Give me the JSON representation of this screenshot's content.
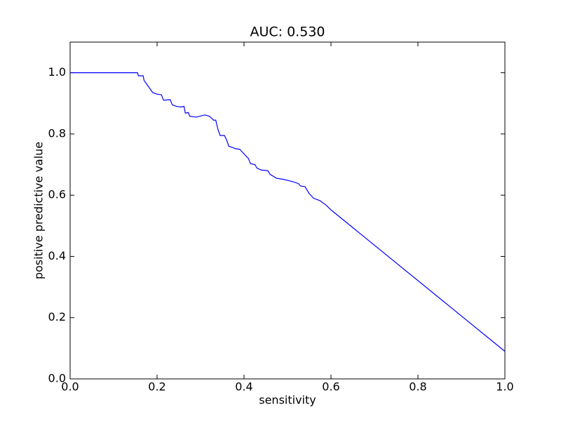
{
  "chart_data": {
    "type": "line",
    "title": "AUC: 0.530",
    "x_label": "sensitivity",
    "y_label": "positive predictive value",
    "xlim": [
      0,
      1
    ],
    "ylim": [
      0,
      1.1
    ],
    "xticks": [
      {
        "value": 0,
        "label": "0.0"
      },
      0.2,
      0.4,
      0.6,
      0.8,
      {
        "value": 1,
        "label": "1.0"
      }
    ],
    "yticks": [
      {
        "value": 0,
        "label": "0.0"
      },
      0.2,
      0.4,
      0.6,
      0.8,
      {
        "value": 1,
        "label": "1.0"
      }
    ],
    "grid": false,
    "series": [
      {
        "color": "#0000ff",
        "x": [
          0,
          0.155,
          0.157,
          0.168,
          0.17,
          0.175,
          0.18,
          0.185,
          0.19,
          0.2,
          0.21,
          0.215,
          0.23,
          0.235,
          0.245,
          0.255,
          0.262,
          0.265,
          0.272,
          0.275,
          0.29,
          0.31,
          0.32,
          0.325,
          0.33,
          0.335,
          0.34,
          0.345,
          0.355,
          0.36,
          0.365,
          0.375,
          0.38,
          0.39,
          0.4,
          0.41,
          0.415,
          0.425,
          0.43,
          0.44,
          0.455,
          0.46,
          0.475,
          0.49,
          0.51,
          0.525,
          0.53,
          0.54,
          0.55,
          0.56,
          0.575,
          0.59,
          0.6,
          1.0
        ],
        "values": [
          1.0,
          1.0,
          0.99,
          0.99,
          0.975,
          0.965,
          0.955,
          0.945,
          0.935,
          0.93,
          0.928,
          0.91,
          0.912,
          0.895,
          0.89,
          0.888,
          0.89,
          0.868,
          0.87,
          0.858,
          0.855,
          0.862,
          0.858,
          0.852,
          0.845,
          0.845,
          0.815,
          0.795,
          0.795,
          0.78,
          0.76,
          0.755,
          0.752,
          0.75,
          0.735,
          0.72,
          0.703,
          0.7,
          0.688,
          0.682,
          0.68,
          0.668,
          0.655,
          0.652,
          0.645,
          0.638,
          0.63,
          0.628,
          0.605,
          0.59,
          0.582,
          0.566,
          0.552,
          0.09
        ]
      }
    ]
  }
}
